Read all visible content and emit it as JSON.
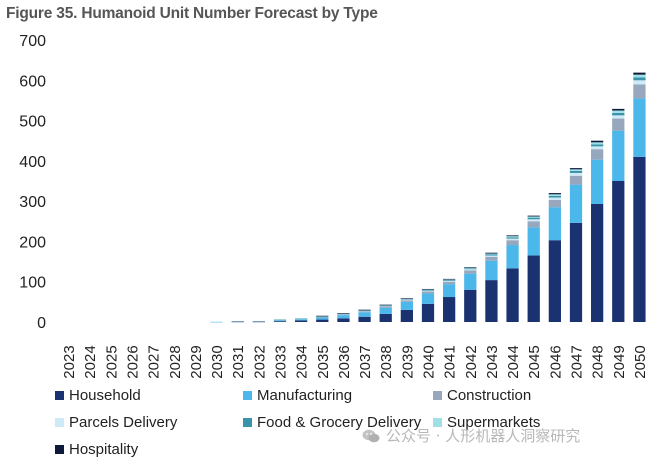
{
  "title": "Figure 35. Humanoid Unit Number Forecast by Type",
  "watermark": "公众号 · 人形机器人洞察研究",
  "chart_data": {
    "type": "bar",
    "stacked": true,
    "title": "Figure 35. Humanoid Unit Number Forecast by Type",
    "xlabel": "",
    "ylabel": "",
    "ylim": [
      0,
      700
    ],
    "yticks": [
      0,
      100,
      200,
      300,
      400,
      500,
      600,
      700
    ],
    "grid": false,
    "legend_position": "bottom",
    "categories": [
      "2023",
      "2024",
      "2025",
      "2026",
      "2027",
      "2028",
      "2029",
      "2030",
      "2031",
      "2032",
      "2033",
      "2034",
      "2035",
      "2036",
      "2037",
      "2038",
      "2039",
      "2040",
      "2041",
      "2042",
      "2043",
      "2044",
      "2045",
      "2046",
      "2047",
      "2048",
      "2049",
      "2050"
    ],
    "series": [
      {
        "name": "Household",
        "color": "#1b3270",
        "values": [
          0,
          0,
          0,
          0,
          0,
          0,
          0,
          0,
          1,
          1,
          2,
          4,
          6,
          9,
          13,
          20,
          30,
          45,
          62,
          80,
          104,
          133,
          165,
          203,
          246,
          293,
          350,
          410
        ]
      },
      {
        "name": "Manufacturing",
        "color": "#4cb7ea",
        "values": [
          0,
          0,
          0,
          0,
          0,
          0,
          0,
          0.5,
          1,
          1,
          2,
          3,
          5,
          8,
          11,
          15,
          20,
          26,
          32,
          40,
          48,
          58,
          70,
          82,
          95,
          110,
          125,
          145
        ]
      },
      {
        "name": "Construction",
        "color": "#97a7bd",
        "values": [
          0,
          0,
          0,
          0,
          0,
          0,
          0,
          0,
          0.5,
          0.5,
          1,
          1,
          2,
          2,
          3,
          4,
          4,
          5,
          6,
          8,
          10,
          12,
          15,
          18,
          22,
          26,
          30,
          35
        ]
      },
      {
        "name": "Parcels Delivery",
        "color": "#cfeaf7",
        "values": [
          0,
          0,
          0,
          0,
          0,
          0,
          0,
          0,
          0,
          0,
          0.5,
          0.5,
          1,
          1,
          1,
          1,
          2,
          2,
          2,
          3,
          3,
          4,
          5,
          6,
          7,
          7,
          8,
          10
        ]
      },
      {
        "name": "Food & Grocery Delivery",
        "color": "#3a93a8",
        "values": [
          0,
          0,
          0,
          0,
          0,
          0,
          0,
          0,
          0,
          0,
          0.5,
          0.5,
          0.5,
          1,
          1,
          1,
          1,
          2,
          2,
          2,
          3,
          3,
          4,
          4,
          5,
          5,
          6,
          7
        ]
      },
      {
        "name": "Supermarkets",
        "color": "#9fe0e6",
        "values": [
          0,
          0,
          0,
          0,
          0,
          0,
          0,
          0,
          0,
          0,
          0,
          0.5,
          0.5,
          0.5,
          1,
          1,
          1,
          1,
          2,
          2,
          2,
          3,
          3,
          4,
          4,
          5,
          6,
          7
        ]
      },
      {
        "name": "Hospitality",
        "color": "#0d1a3a",
        "values": [
          0,
          0,
          0,
          0,
          0,
          0,
          0,
          0,
          0,
          0,
          0,
          0,
          0.5,
          0.5,
          0.5,
          1,
          1,
          1,
          1,
          1,
          2,
          2,
          2,
          3,
          3,
          4,
          4,
          5
        ]
      }
    ]
  }
}
